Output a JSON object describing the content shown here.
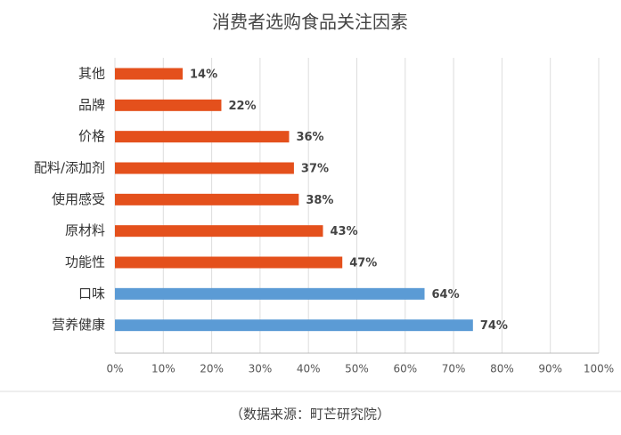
{
  "chart_data": {
    "type": "barh",
    "title": "消费者选购食品关注因素",
    "source": "（数据来源：町芒研究院）",
    "categories": [
      "其他",
      "品牌",
      "价格",
      "配料/添加剂",
      "使用感受",
      "原材料",
      "功能性",
      "口味",
      "营养健康"
    ],
    "values": [
      14,
      22,
      36,
      37,
      38,
      43,
      47,
      64,
      74
    ],
    "value_labels": [
      "14%",
      "22%",
      "36%",
      "37%",
      "38%",
      "43%",
      "47%",
      "64%",
      "74%"
    ],
    "colors": [
      "#e4501c",
      "#e4501c",
      "#e4501c",
      "#e4501c",
      "#e4501c",
      "#e4501c",
      "#e4501c",
      "#5b9bd5",
      "#5b9bd5"
    ],
    "xlim": [
      0,
      100
    ],
    "xticks": [
      {
        "value": 0,
        "label": "0%"
      },
      {
        "value": 10,
        "label": "10%"
      },
      {
        "value": 20,
        "label": "20%"
      },
      {
        "value": 30,
        "label": "30%"
      },
      {
        "value": 40,
        "label": "40%"
      },
      {
        "value": 50,
        "label": "50%"
      },
      {
        "value": 60,
        "label": "60%"
      },
      {
        "value": 70,
        "label": "70%"
      },
      {
        "value": 80,
        "label": "80%"
      },
      {
        "value": 90,
        "label": "90%"
      },
      {
        "value": 100,
        "label": "100%"
      }
    ],
    "grid": true
  }
}
